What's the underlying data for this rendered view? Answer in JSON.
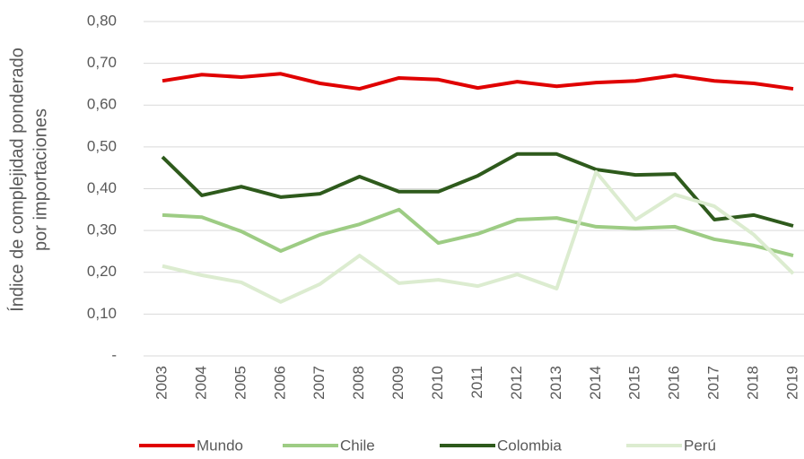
{
  "chart_data": {
    "type": "line",
    "y_label": [
      "Índice de complejidad ponderado",
      "por importaciones"
    ],
    "categories": [
      "2003",
      "2004",
      "2005",
      "2006",
      "2007",
      "2008",
      "2009",
      "2010",
      "2011",
      "2012",
      "2013",
      "2014",
      "2015",
      "2016",
      "2017",
      "2018",
      "2019"
    ],
    "series": [
      {
        "name": "Mundo",
        "color": "#e00000",
        "values": [
          0.658,
          0.673,
          0.667,
          0.675,
          0.652,
          0.639,
          0.665,
          0.661,
          0.641,
          0.656,
          0.645,
          0.654,
          0.658,
          0.671,
          0.658,
          0.652,
          0.639
        ]
      },
      {
        "name": "Chile",
        "color": "#9dcc84",
        "values": [
          0.337,
          0.332,
          0.298,
          0.251,
          0.29,
          0.315,
          0.35,
          0.27,
          0.292,
          0.326,
          0.33,
          0.309,
          0.305,
          0.309,
          0.279,
          0.264,
          0.24
        ]
      },
      {
        "name": "Colombia",
        "color": "#2e5a1c",
        "values": [
          0.476,
          0.384,
          0.405,
          0.38,
          0.388,
          0.429,
          0.393,
          0.393,
          0.431,
          0.483,
          0.483,
          0.446,
          0.433,
          0.435,
          0.326,
          0.337,
          0.311
        ]
      },
      {
        "name": "Perú",
        "color": "#dcecd0",
        "values": [
          0.215,
          0.193,
          0.176,
          0.129,
          0.172,
          0.24,
          0.174,
          0.182,
          0.167,
          0.195,
          0.161,
          0.44,
          0.326,
          0.386,
          0.358,
          0.29,
          0.197
        ]
      }
    ],
    "ylim": [
      0,
      0.8
    ],
    "yticks": [
      {
        "value": 0,
        "label": "-"
      },
      {
        "value": 0.1,
        "label": "0,10"
      },
      {
        "value": 0.2,
        "label": "0,20"
      },
      {
        "value": 0.3,
        "label": "0,30"
      },
      {
        "value": 0.4,
        "label": "0,40"
      },
      {
        "value": 0.5,
        "label": "0,50"
      },
      {
        "value": 0.6,
        "label": "0,60"
      },
      {
        "value": 0.7,
        "label": "0,70"
      },
      {
        "value": 0.8,
        "label": "0,80"
      }
    ],
    "grid": true,
    "legend": "bottom"
  }
}
